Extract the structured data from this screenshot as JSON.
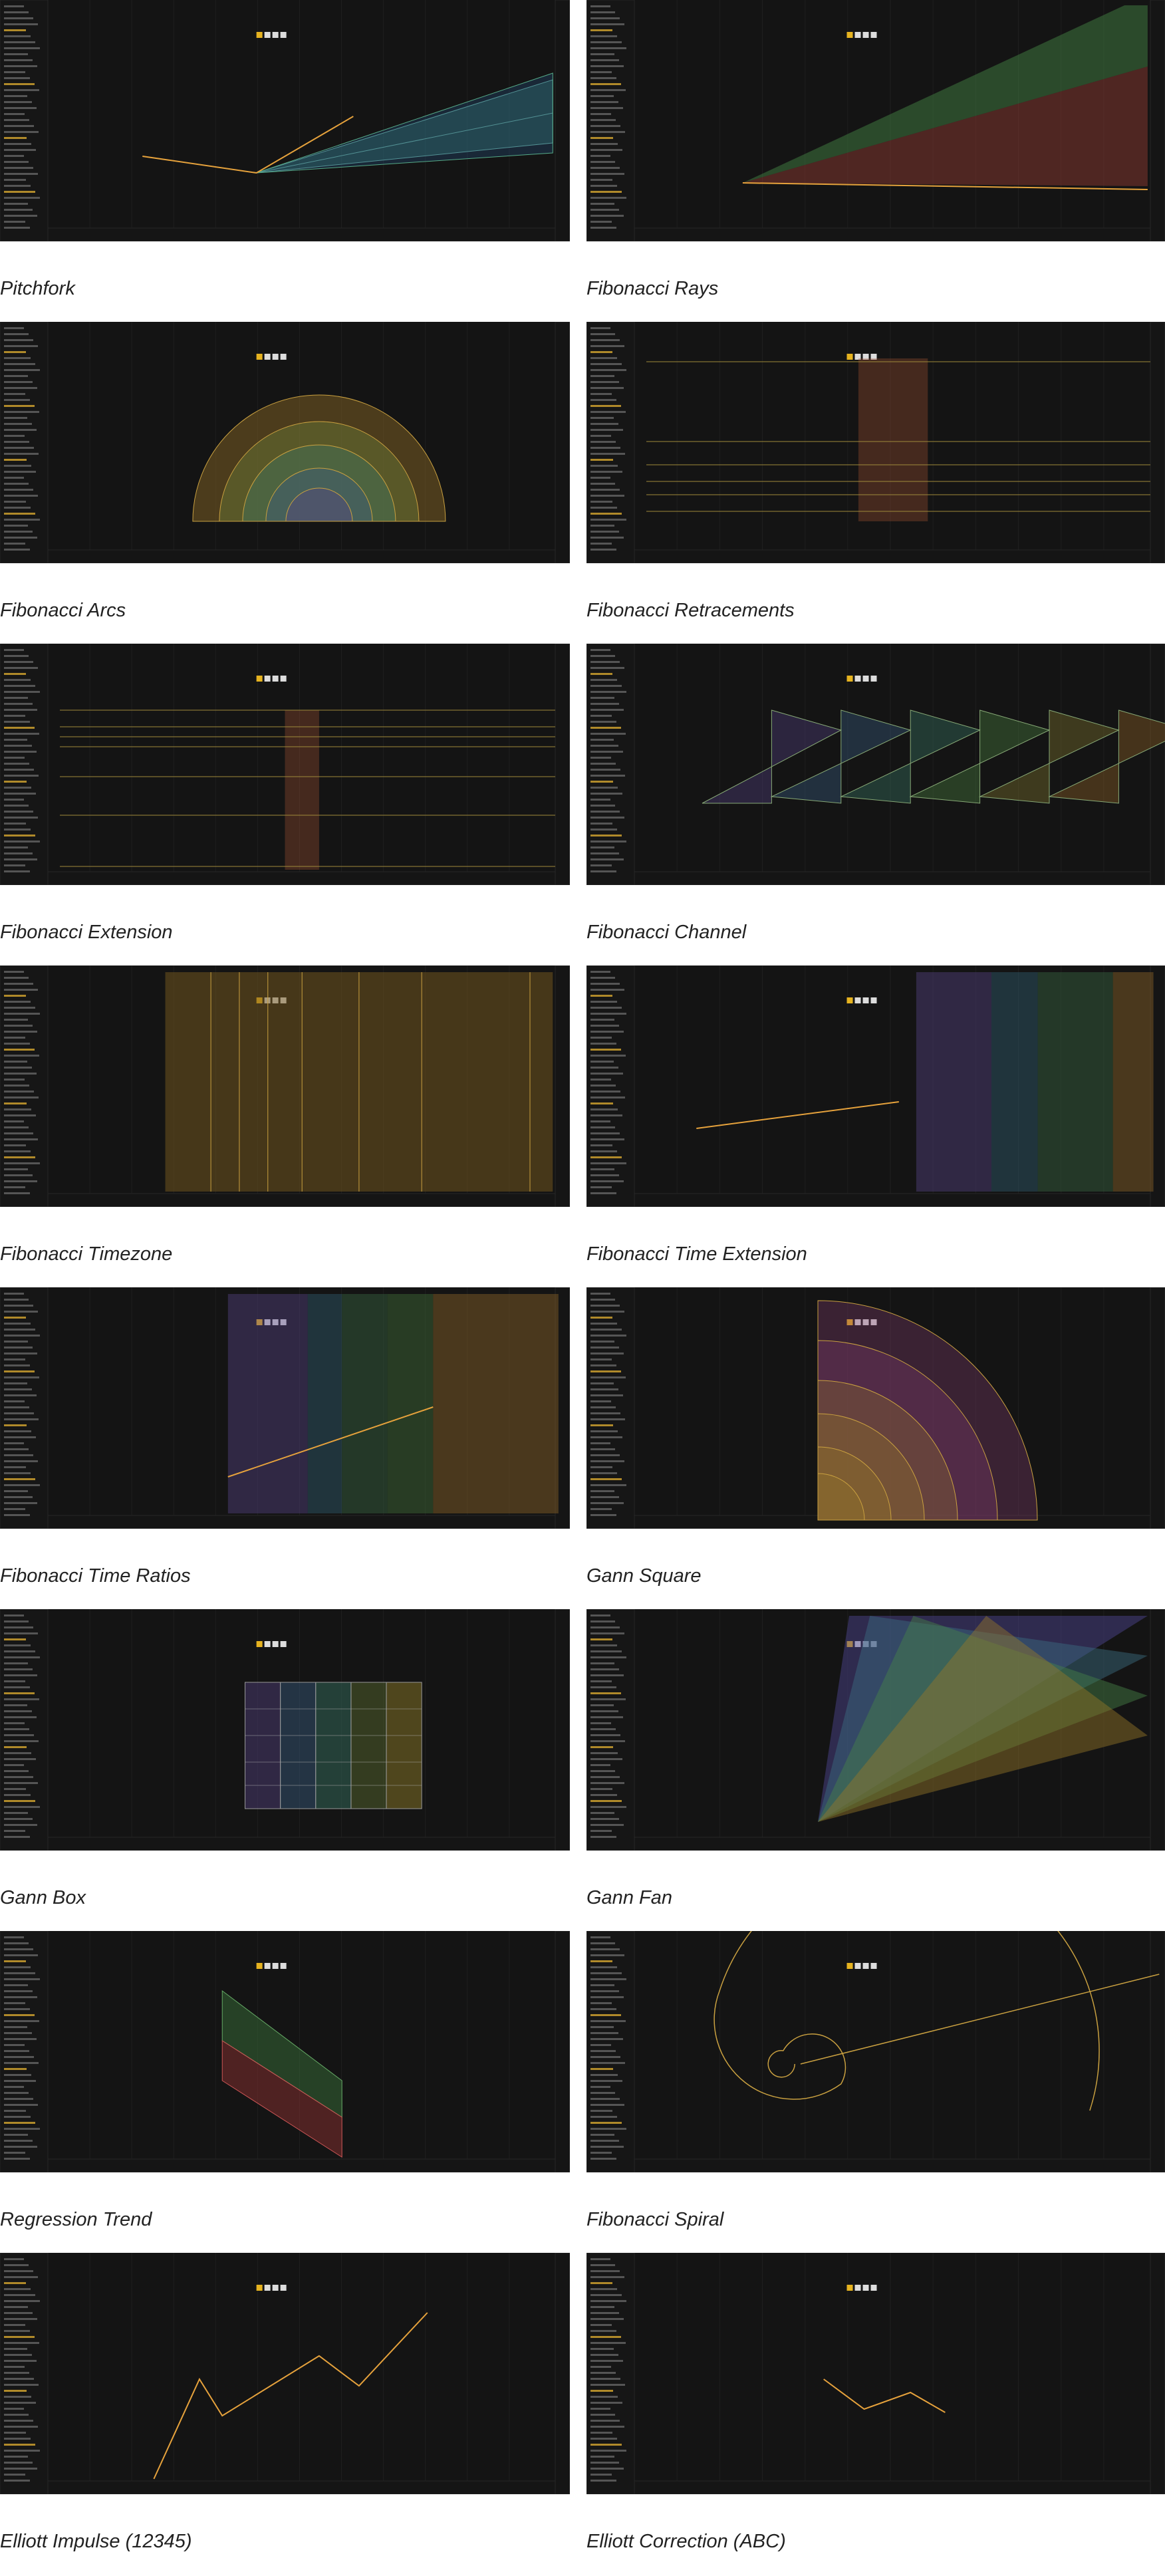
{
  "items": [
    {
      "caption": "Pitchfork"
    },
    {
      "caption": "Fibonacci Rays"
    },
    {
      "caption": "Fibonacci Arcs"
    },
    {
      "caption": "Fibonacci Retracements"
    },
    {
      "caption": "Fibonacci Extension"
    },
    {
      "caption": "Fibonacci Channel"
    },
    {
      "caption": "Fibonacci Timezone"
    },
    {
      "caption": "Fibonacci Time Extension"
    },
    {
      "caption": "Fibonacci Time Ratios"
    },
    {
      "caption": "Gann Square"
    },
    {
      "caption": "Gann Box"
    },
    {
      "caption": "Gann Fan"
    },
    {
      "caption": "Regression Trend"
    },
    {
      "caption": "Fibonacci Spiral"
    },
    {
      "caption": "Elliott Impulse (12345)"
    },
    {
      "caption": "Elliott Correction (ABC)"
    }
  ]
}
